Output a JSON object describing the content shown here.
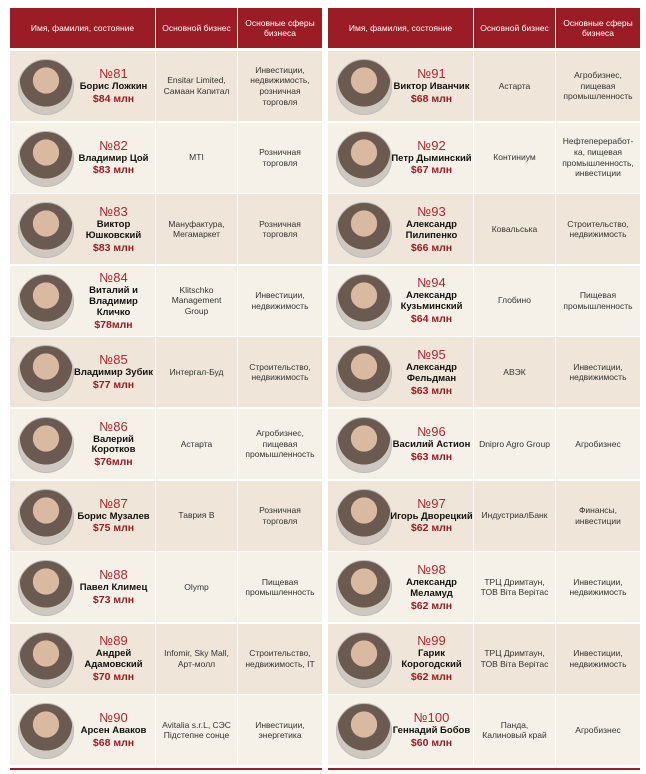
{
  "tables": [
    {
      "columns": [
        "Имя, фамилия, состояние",
        "Основной бизнес",
        "Основные сферы бизнеса"
      ],
      "rows": [
        {
          "rank": "№81",
          "name": "Борис Ложкин",
          "wealth": "$84 млн",
          "business": "Ensitar Limited, Самаан Капитал",
          "spheres": "Инвестиции, недвижимость, розничная торговля"
        },
        {
          "rank": "№82",
          "name": "Владимир Цой",
          "wealth": "$83 млн",
          "business": "MTI",
          "spheres": "Розничная торговля"
        },
        {
          "rank": "№83",
          "name": "Виктор Юшковский",
          "wealth": "$83 млн",
          "business": "Мануфактура, Мегамаркет",
          "spheres": "Розничная торговля"
        },
        {
          "rank": "№84",
          "name": "Виталий и Владимир Кличко",
          "wealth": "$78млн",
          "business": "Klitschko Management Group",
          "spheres": "Инвестиции, недвижимость"
        },
        {
          "rank": "№85",
          "name": "Владимир Зубик",
          "wealth": "$77 млн",
          "business": "Интергал-Буд",
          "spheres": "Строительство, недвижимость"
        },
        {
          "rank": "№86",
          "name": "Валерий Коротков",
          "wealth": "$76млн",
          "business": "Астарта",
          "spheres": "Агробизнес, пищевая промышленность"
        },
        {
          "rank": "№87",
          "name": "Борис Музалев",
          "wealth": "$75 млн",
          "business": "Таврия В",
          "spheres": "Розничная торговля"
        },
        {
          "rank": "№88",
          "name": "Павел Климец",
          "wealth": "$73 млн",
          "business": "Olymp",
          "spheres": "Пищевая промышленность"
        },
        {
          "rank": "№89",
          "name": "Андрей Адамовский",
          "wealth": "$70 млн",
          "business": "Infomir, Sky Mall, Арт-молл",
          "spheres": "Строительство, недвижимость, IT"
        },
        {
          "rank": "№90",
          "name": "Арсен Аваков",
          "wealth": "$68 млн",
          "business": "Avitalia s.r.L, СЭС Підстепне сонце",
          "spheres": "Инвестиции, энергетика"
        }
      ]
    },
    {
      "columns": [
        "Имя, фамилия, состояние",
        "Основной бизнес",
        "Основные сферы бизнеса"
      ],
      "rows": [
        {
          "rank": "№91",
          "name": "Виктор Иванчик",
          "wealth": "$68 млн",
          "business": "Астарта",
          "spheres": "Агробизнес, пищевая промышленность"
        },
        {
          "rank": "№92",
          "name": "Петр Дыминский",
          "wealth": "$67 млн",
          "business": "Континиум",
          "spheres": "Нефтепереработ-ка, пищевая промышленность, инвестиции"
        },
        {
          "rank": "№93",
          "name": "Александр Пилипенко",
          "wealth": "$66 млн",
          "business": "Ковальська",
          "spheres": "Строительство, недвижимость"
        },
        {
          "rank": "№94",
          "name": "Александр Кузьминский",
          "wealth": "$64 млн",
          "business": "Глобино",
          "spheres": "Пищевая промышленность"
        },
        {
          "rank": "№95",
          "name": "Александр Фельдман",
          "wealth": "$63 млн",
          "business": "АВЭК",
          "spheres": "Инвестиции, недвижимость"
        },
        {
          "rank": "№96",
          "name": "Василий Астион",
          "wealth": "$63 млн",
          "business": "Dnipro Agro Group",
          "spheres": "Агробизнес"
        },
        {
          "rank": "№97",
          "name": "Игорь Дворецкий",
          "wealth": "$62 млн",
          "business": "ИндустриалБанк",
          "spheres": "Финансы, инвестиции"
        },
        {
          "rank": "№98",
          "name": "Александр Меламуд",
          "wealth": "$62 млн",
          "business": "ТРЦ Дримтаун, ТОВ Віта Верітас",
          "spheres": "Инвестиции, недвижимость"
        },
        {
          "rank": "№99",
          "name": "Гарик Корогодский",
          "wealth": "$62 млн",
          "business": "ТРЦ Дримтаун, ТОВ Віта Верітас",
          "spheres": "Инвестиции, недвижимость"
        },
        {
          "rank": "№100",
          "name": "Геннадий Бобов",
          "wealth": "$60 млн",
          "business": "Панда, Калиновый край",
          "spheres": "Агробизнес"
        }
      ]
    }
  ]
}
